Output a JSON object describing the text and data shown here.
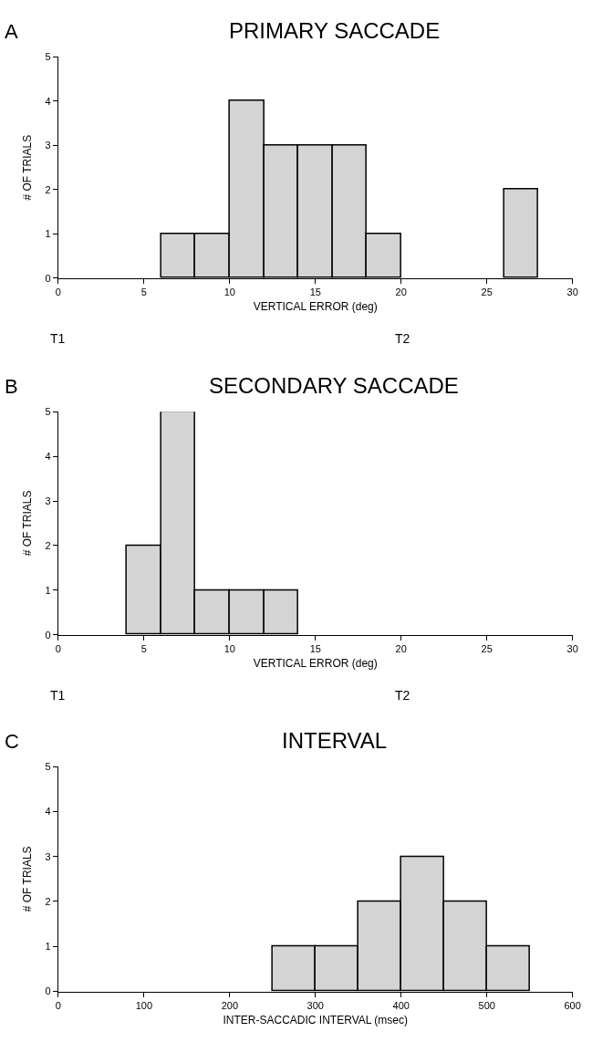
{
  "chart_data": [
    {
      "type": "histogram",
      "title": "PRIMARY SACCADE",
      "xlabel": "VERTICAL ERROR (deg)",
      "ylabel": "# OF TRIALS",
      "color": "#d4d4d4",
      "bins": [
        6,
        8,
        10,
        12,
        14,
        16,
        18,
        20,
        22,
        24,
        26,
        28
      ],
      "values": [
        1,
        1,
        4,
        3,
        3,
        3,
        1,
        0,
        0,
        0,
        2
      ],
      "xlim": [
        0,
        30
      ],
      "xticks": [
        0,
        5,
        10,
        15,
        20,
        25,
        30
      ],
      "ylim": [
        0,
        5
      ],
      "yticks": [
        0,
        1,
        2,
        3,
        4,
        5
      ],
      "annotations": [
        "A",
        "T1",
        "T2"
      ]
    },
    {
      "type": "histogram",
      "title": "SECONDARY SACCADE",
      "xlabel": "VERTICAL ERROR (deg)",
      "ylabel": "# OF TRIALS",
      "color": "#d4d4d4",
      "bins": [
        4,
        6,
        8,
        10,
        12,
        14
      ],
      "values": [
        2,
        5,
        1,
        1,
        1
      ],
      "xlim": [
        0,
        30
      ],
      "xticks": [
        0,
        5,
        10,
        15,
        20,
        25,
        30
      ],
      "ylim": [
        0,
        5
      ],
      "yticks": [
        0,
        1,
        2,
        3,
        4,
        5
      ],
      "annotations": [
        "B",
        "T1",
        "T2"
      ]
    },
    {
      "type": "histogram",
      "title": "INTERVAL",
      "xlabel": "INTER-SACCADIC INTERVAL (msec)",
      "ylabel": "# OF TRIALS",
      "color": "#d4d4d4",
      "bins": [
        250,
        300,
        350,
        400,
        450,
        500,
        550
      ],
      "values": [
        1,
        1,
        2,
        3,
        2,
        1
      ],
      "xlim": [
        0,
        600
      ],
      "xticks": [
        0,
        100,
        200,
        300,
        400,
        500,
        600
      ],
      "ylim": [
        0,
        5
      ],
      "yticks": [
        0,
        1,
        2,
        3,
        4,
        5
      ],
      "annotations": [
        "C"
      ]
    }
  ]
}
